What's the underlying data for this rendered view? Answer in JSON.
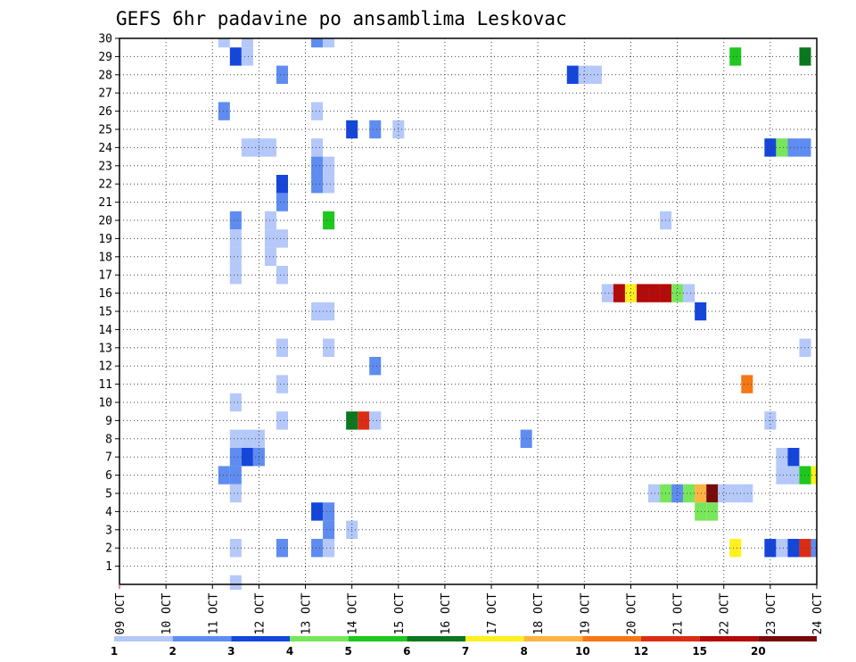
{
  "chart_data": {
    "type": "heatmap",
    "title": "GEFS 6hr padavine po ansamblima Leskovac",
    "xlabel": "",
    "ylabel": "",
    "x_tick_labels": [
      "09 OCT",
      "10 OCT",
      "11 OCT",
      "12 OCT",
      "13 OCT",
      "14 OCT",
      "15 OCT",
      "16 OCT",
      "17 OCT",
      "18 OCT",
      "19 OCT",
      "20 OCT",
      "21 OCT",
      "22 OCT",
      "23 OCT",
      "24 OCT"
    ],
    "x_range": [
      0,
      60
    ],
    "x_unit": "6-hour steps from 09 OCT 00Z",
    "y_tick_labels": [
      "1",
      "2",
      "3",
      "4",
      "5",
      "6",
      "7",
      "8",
      "9",
      "10",
      "11",
      "12",
      "13",
      "14",
      "15",
      "16",
      "17",
      "18",
      "19",
      "20",
      "21",
      "22",
      "23",
      "24",
      "25",
      "26",
      "27",
      "28",
      "29",
      "30"
    ],
    "y_range": [
      0,
      30
    ],
    "grid": true,
    "colorbar": {
      "position": "bottom",
      "labels": [
        "1",
        "2",
        "3",
        "4",
        "5",
        "6",
        "7",
        "8",
        "10",
        "12",
        "15",
        "20"
      ],
      "colors": [
        "#b4c8fa",
        "#5f8cf0",
        "#1446dc",
        "#78e65a",
        "#1ec81e",
        "#0a781e",
        "#fff01e",
        "#ffb441",
        "#f57814",
        "#dc2d14",
        "#b40a0a",
        "#780a0a"
      ]
    },
    "cells": [
      {
        "x": 9,
        "y": 30,
        "v": 1
      },
      {
        "x": 11,
        "y": 30,
        "v": 1
      },
      {
        "x": 17,
        "y": 30,
        "v": 2
      },
      {
        "x": 18,
        "y": 30,
        "v": 1
      },
      {
        "x": 10,
        "y": 29,
        "v": 3
      },
      {
        "x": 11,
        "y": 29,
        "v": 1
      },
      {
        "x": 53,
        "y": 29,
        "v": 5
      },
      {
        "x": 59,
        "y": 29,
        "v": 6
      },
      {
        "x": 14,
        "y": 28,
        "v": 2
      },
      {
        "x": 39,
        "y": 28,
        "v": 3
      },
      {
        "x": 40,
        "y": 28,
        "v": 1
      },
      {
        "x": 41,
        "y": 28,
        "v": 1
      },
      {
        "x": 9,
        "y": 26,
        "v": 2
      },
      {
        "x": 17,
        "y": 26,
        "v": 1
      },
      {
        "x": 20,
        "y": 25,
        "v": 3
      },
      {
        "x": 22,
        "y": 25,
        "v": 2
      },
      {
        "x": 24,
        "y": 25,
        "v": 1
      },
      {
        "x": 11,
        "y": 24,
        "v": 1
      },
      {
        "x": 12,
        "y": 24,
        "v": 1
      },
      {
        "x": 13,
        "y": 24,
        "v": 1
      },
      {
        "x": 17,
        "y": 24,
        "v": 1
      },
      {
        "x": 56,
        "y": 24,
        "v": 3
      },
      {
        "x": 57,
        "y": 24,
        "v": 4
      },
      {
        "x": 58,
        "y": 24,
        "v": 2
      },
      {
        "x": 59,
        "y": 24,
        "v": 2
      },
      {
        "x": 17,
        "y": 23,
        "v": 2
      },
      {
        "x": 18,
        "y": 23,
        "v": 1
      },
      {
        "x": 14,
        "y": 22,
        "v": 3
      },
      {
        "x": 17,
        "y": 22,
        "v": 2
      },
      {
        "x": 18,
        "y": 22,
        "v": 1
      },
      {
        "x": 14,
        "y": 21,
        "v": 2
      },
      {
        "x": 10,
        "y": 20,
        "v": 2
      },
      {
        "x": 13,
        "y": 20,
        "v": 1
      },
      {
        "x": 18,
        "y": 20,
        "v": 5
      },
      {
        "x": 47,
        "y": 20,
        "v": 1
      },
      {
        "x": 10,
        "y": 19,
        "v": 1
      },
      {
        "x": 13,
        "y": 19,
        "v": 1
      },
      {
        "x": 14,
        "y": 19,
        "v": 1
      },
      {
        "x": 10,
        "y": 18,
        "v": 1
      },
      {
        "x": 13,
        "y": 18,
        "v": 1
      },
      {
        "x": 10,
        "y": 17,
        "v": 1
      },
      {
        "x": 14,
        "y": 17,
        "v": 1
      },
      {
        "x": 42,
        "y": 16,
        "v": 1
      },
      {
        "x": 43,
        "y": 16,
        "v": 11
      },
      {
        "x": 44,
        "y": 16,
        "v": 7
      },
      {
        "x": 45,
        "y": 16,
        "v": 11
      },
      {
        "x": 46,
        "y": 16,
        "v": 11
      },
      {
        "x": 47,
        "y": 16,
        "v": 11
      },
      {
        "x": 48,
        "y": 16,
        "v": 4
      },
      {
        "x": 49,
        "y": 16,
        "v": 1
      },
      {
        "x": 17,
        "y": 15,
        "v": 1
      },
      {
        "x": 18,
        "y": 15,
        "v": 1
      },
      {
        "x": 50,
        "y": 15,
        "v": 3
      },
      {
        "x": 14,
        "y": 13,
        "v": 1
      },
      {
        "x": 18,
        "y": 13,
        "v": 1
      },
      {
        "x": 59,
        "y": 13,
        "v": 1
      },
      {
        "x": 22,
        "y": 12,
        "v": 2
      },
      {
        "x": 14,
        "y": 11,
        "v": 1
      },
      {
        "x": 54,
        "y": 11,
        "v": 9
      },
      {
        "x": 10,
        "y": 10,
        "v": 1
      },
      {
        "x": 14,
        "y": 9,
        "v": 1
      },
      {
        "x": 20,
        "y": 9,
        "v": 6
      },
      {
        "x": 21,
        "y": 9,
        "v": 10
      },
      {
        "x": 22,
        "y": 9,
        "v": 1
      },
      {
        "x": 56,
        "y": 9,
        "v": 1
      },
      {
        "x": 10,
        "y": 8,
        "v": 1
      },
      {
        "x": 11,
        "y": 8,
        "v": 1
      },
      {
        "x": 12,
        "y": 8,
        "v": 1
      },
      {
        "x": 35,
        "y": 8,
        "v": 2
      },
      {
        "x": 10,
        "y": 7,
        "v": 2
      },
      {
        "x": 11,
        "y": 7,
        "v": 3
      },
      {
        "x": 12,
        "y": 7,
        "v": 2
      },
      {
        "x": 57,
        "y": 7,
        "v": 1
      },
      {
        "x": 58,
        "y": 7,
        "v": 3
      },
      {
        "x": 9,
        "y": 6,
        "v": 2
      },
      {
        "x": 10,
        "y": 6,
        "v": 2
      },
      {
        "x": 57,
        "y": 6,
        "v": 1
      },
      {
        "x": 58,
        "y": 6,
        "v": 1
      },
      {
        "x": 59,
        "y": 6,
        "v": 5
      },
      {
        "x": 60,
        "y": 6,
        "v": 7
      },
      {
        "x": 10,
        "y": 5,
        "v": 1
      },
      {
        "x": 46,
        "y": 5,
        "v": 1
      },
      {
        "x": 47,
        "y": 5,
        "v": 4
      },
      {
        "x": 48,
        "y": 5,
        "v": 2
      },
      {
        "x": 49,
        "y": 5,
        "v": 4
      },
      {
        "x": 50,
        "y": 5,
        "v": 8
      },
      {
        "x": 51,
        "y": 5,
        "v": 12
      },
      {
        "x": 52,
        "y": 5,
        "v": 1
      },
      {
        "x": 53,
        "y": 5,
        "v": 1
      },
      {
        "x": 54,
        "y": 5,
        "v": 1
      },
      {
        "x": 17,
        "y": 4,
        "v": 3
      },
      {
        "x": 18,
        "y": 4,
        "v": 2
      },
      {
        "x": 50,
        "y": 4,
        "v": 4
      },
      {
        "x": 51,
        "y": 4,
        "v": 4
      },
      {
        "x": 18,
        "y": 3,
        "v": 2
      },
      {
        "x": 20,
        "y": 3,
        "v": 1
      },
      {
        "x": 10,
        "y": 2,
        "v": 1
      },
      {
        "x": 14,
        "y": 2,
        "v": 2
      },
      {
        "x": 17,
        "y": 2,
        "v": 2
      },
      {
        "x": 18,
        "y": 2,
        "v": 1
      },
      {
        "x": 53,
        "y": 2,
        "v": 7
      },
      {
        "x": 56,
        "y": 2,
        "v": 3
      },
      {
        "x": 57,
        "y": 2,
        "v": 1
      },
      {
        "x": 58,
        "y": 2,
        "v": 3
      },
      {
        "x": 59,
        "y": 2,
        "v": 10
      },
      {
        "x": 60,
        "y": 2,
        "v": 2
      },
      {
        "x": 10,
        "y": 0,
        "v": 1
      }
    ]
  }
}
